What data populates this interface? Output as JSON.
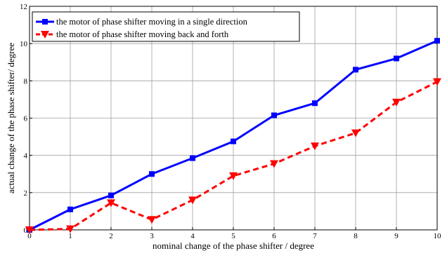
{
  "chart_data": {
    "type": "line",
    "title": "",
    "xlabel": "nominal change of the phase shifter / degree",
    "ylabel": "actual change of the phase shifter/ degree",
    "xlim": [
      0,
      10
    ],
    "ylim": [
      0,
      12
    ],
    "x": [
      0,
      1,
      2,
      3,
      4,
      5,
      6,
      7,
      8,
      9,
      10
    ],
    "x_ticks": [
      "0",
      "1",
      "2",
      "3",
      "4",
      "5",
      "6",
      "7",
      "8",
      "9",
      "10"
    ],
    "y_ticks": [
      "0",
      "2",
      "4",
      "6",
      "8",
      "10",
      "12"
    ],
    "grid": true,
    "legend_position": "top-left",
    "series": [
      {
        "name": "the motor of phase shifter moving in a single direction",
        "values": [
          0.0,
          1.1,
          1.85,
          3.0,
          3.85,
          4.75,
          6.15,
          6.8,
          8.6,
          9.2,
          10.15
        ],
        "color": "#0000ff",
        "line_style": "solid",
        "marker": "square"
      },
      {
        "name": "the motor of phase shifter moving back and forth",
        "values": [
          0.0,
          0.05,
          1.45,
          0.55,
          1.6,
          2.9,
          3.55,
          4.5,
          5.2,
          6.85,
          7.95
        ],
        "color": "#ff0000",
        "line_style": "dashed",
        "marker": "triangle-down"
      }
    ]
  }
}
